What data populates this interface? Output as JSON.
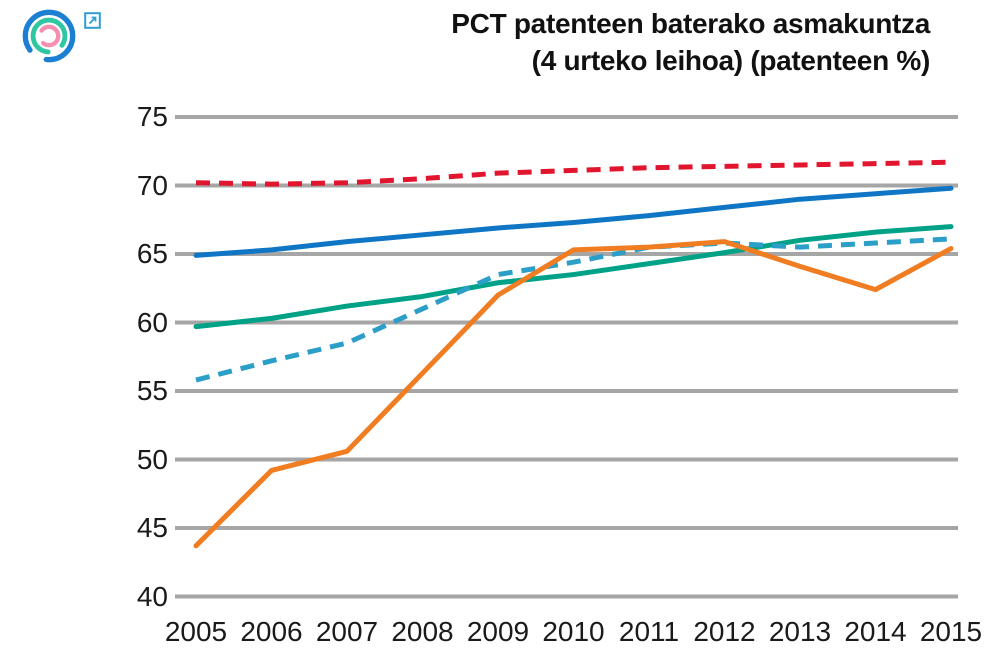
{
  "header": {
    "title_line1": "PCT patenteen baterako asmakuntza",
    "title_line2": "(4 urteko leihoa) (patenteen %)"
  },
  "logo": {
    "description": "three concentric broken circle arcs",
    "outer_color": "#1b7fd4",
    "middle_color": "#2ec7a2",
    "inner_color": "#f48fb1",
    "external_link_color": "#2f9ed2"
  },
  "chart_data": {
    "type": "line",
    "title": "PCT patenteen baterako asmakuntza (4 urteko leihoa) (patenteen %)",
    "x": [
      2005,
      2006,
      2007,
      2008,
      2009,
      2010,
      2011,
      2012,
      2013,
      2014,
      2015
    ],
    "series": [
      {
        "name": "red-dashed",
        "color": "#e1152e",
        "style": "dashed",
        "values": [
          70.2,
          70.1,
          70.2,
          70.5,
          70.9,
          71.1,
          71.3,
          71.4,
          71.5,
          71.6,
          71.7
        ]
      },
      {
        "name": "blue-solid",
        "color": "#0e76c4",
        "style": "solid",
        "values": [
          64.9,
          65.3,
          65.9,
          66.4,
          66.9,
          67.3,
          67.8,
          68.4,
          69.0,
          69.4,
          69.8
        ]
      },
      {
        "name": "green-solid",
        "color": "#00a287",
        "style": "solid",
        "values": [
          59.7,
          60.3,
          61.2,
          61.9,
          62.9,
          63.5,
          64.3,
          65.1,
          66.0,
          66.6,
          67.0
        ]
      },
      {
        "name": "teal-dashed",
        "color": "#2b9fc7",
        "style": "dashed",
        "values": [
          55.8,
          57.2,
          58.5,
          61.0,
          63.5,
          64.4,
          65.5,
          65.8,
          65.5,
          65.8,
          66.1
        ]
      },
      {
        "name": "orange-solid",
        "color": "#f07d21",
        "style": "solid",
        "values": [
          43.7,
          49.2,
          50.6,
          56.3,
          62.0,
          65.3,
          65.5,
          65.9,
          64.1,
          62.4,
          65.4
        ]
      }
    ],
    "ylim": [
      40,
      75
    ],
    "yticks": [
      75,
      70,
      65,
      60,
      55,
      50,
      45,
      40
    ],
    "xlabel": "",
    "ylabel": "",
    "grid": true,
    "grid_color": "#a6a6a6",
    "legend": "none"
  }
}
